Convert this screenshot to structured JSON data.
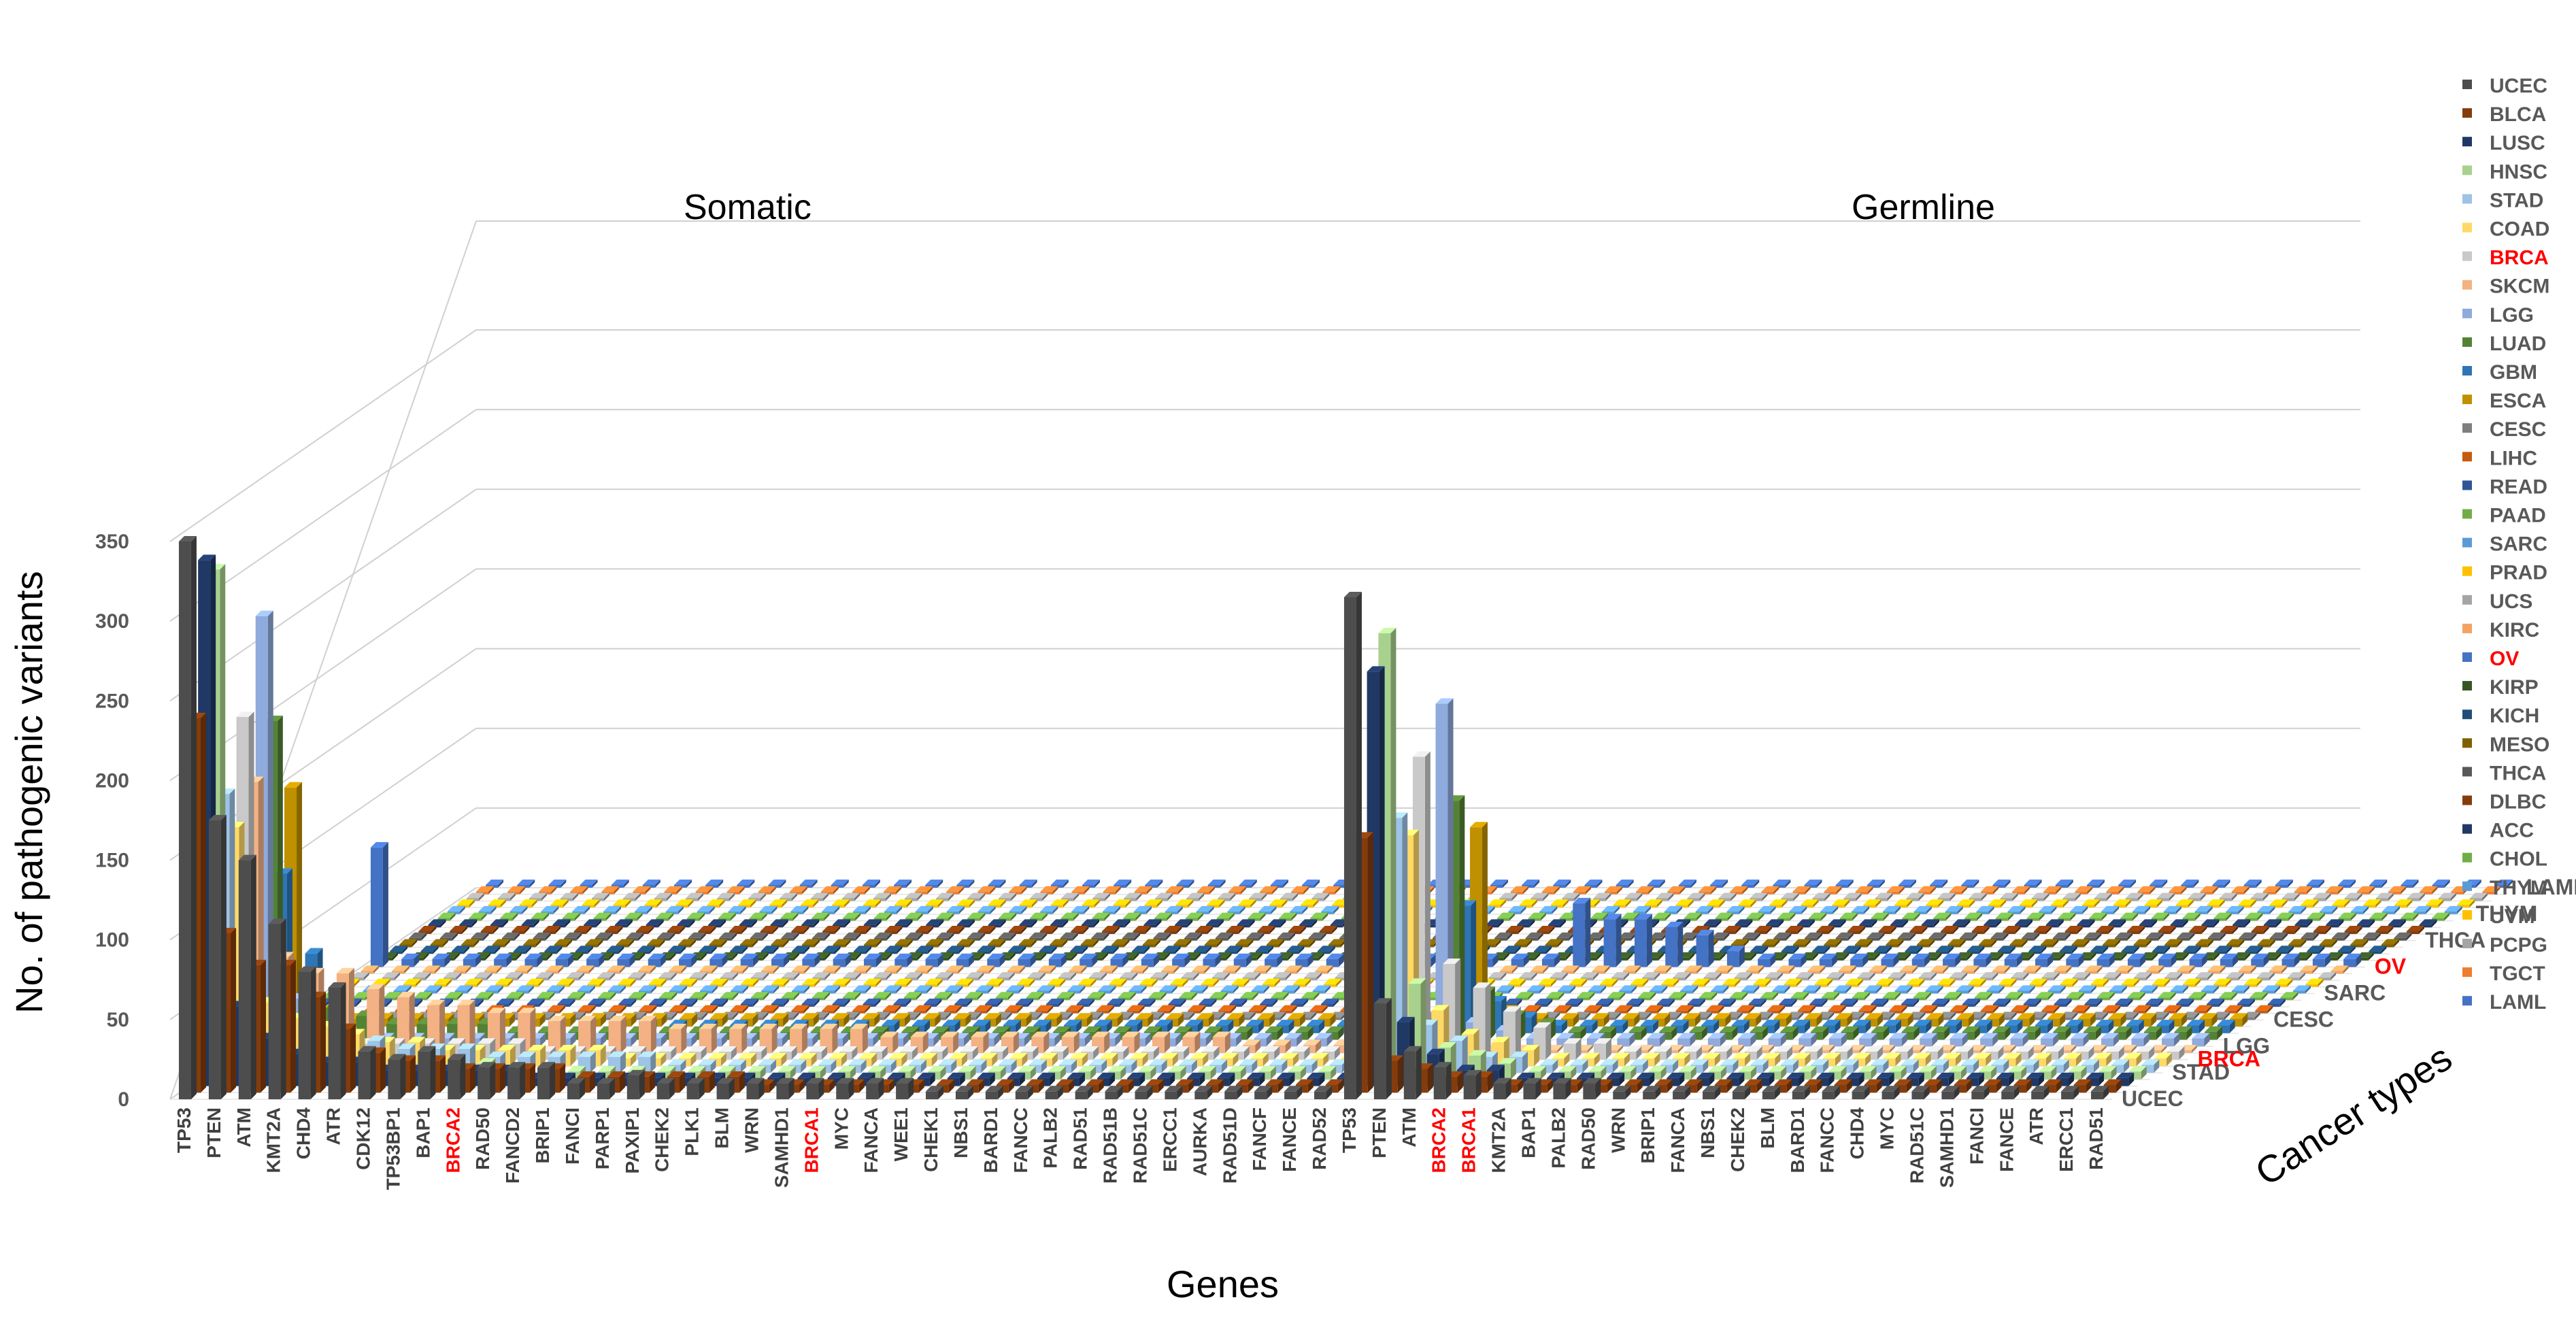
{
  "chart_data": {
    "type": "bar3d",
    "title": "",
    "ylabel": "No. of pathogenic variants",
    "xlabel": "Genes",
    "zlabel": "Cancer types",
    "ylim": [
      0,
      350
    ],
    "yticks": [
      "0",
      "50",
      "100",
      "150",
      "200",
      "250",
      "300",
      "350"
    ],
    "highlight_color": "#ff0000",
    "panels": [
      "Somatic",
      "Germline"
    ],
    "genes_somatic": [
      "TP53",
      "PTEN",
      "ATM",
      "KMT2A",
      "CHD4",
      "ATR",
      "CDK12",
      "TP53BP1",
      "BAP1",
      "BRCA2",
      "RAD50",
      "FANCD2",
      "BRIP1",
      "FANCI",
      "PARP1",
      "PAXIP1",
      "CHEK2",
      "PLK1",
      "BLM",
      "WRN",
      "SAMHD1",
      "BRCA1",
      "MYC",
      "FANCA",
      "WEE1",
      "CHEK1",
      "NBS1",
      "BARD1",
      "FANCC",
      "PALB2",
      "RAD51",
      "RAD51B",
      "RAD51C",
      "ERCC1",
      "AURKA",
      "RAD51D",
      "FANCF",
      "FANCE",
      "RAD52"
    ],
    "genes_germline": [
      "TP53",
      "PTEN",
      "ATM",
      "BRCA2",
      "BRCA1",
      "KMT2A",
      "BAP1",
      "PALB2",
      "RAD50",
      "WRN",
      "BRIP1",
      "FANCA",
      "NBS1",
      "CHEK2",
      "BLM",
      "BARD1",
      "FANCC",
      "CHD4",
      "MYC",
      "RAD51C",
      "SAMHD1",
      "FANCI",
      "FANCE",
      "ATR",
      "ERCC1",
      "RAD51"
    ],
    "highlighted_genes": [
      "BRCA2",
      "BRCA1"
    ],
    "cancer_types": [
      "UCEC",
      "BLCA",
      "LUSC",
      "HNSC",
      "STAD",
      "COAD",
      "BRCA",
      "SKCM",
      "LGG",
      "LUAD",
      "GBM",
      "ESCA",
      "CESC",
      "LIHC",
      "READ",
      "PAAD",
      "SARC",
      "PRAD",
      "UCS",
      "KIRC",
      "OV",
      "KIRP",
      "KICH",
      "MESO",
      "THCA",
      "DLBC",
      "ACC",
      "CHOL",
      "THYM",
      "UVM",
      "PCPG",
      "TGCT",
      "LAML"
    ],
    "cancer_colors": [
      "#4d4d4d",
      "#843c0c",
      "#1f3864",
      "#a9d18e",
      "#9dc3e6",
      "#ffd966",
      "#c9c9c9",
      "#f4b183",
      "#8faadc",
      "#548235",
      "#2e75b6",
      "#bf9000",
      "#7f7f7f",
      "#c55a11",
      "#2f5597",
      "#70ad47",
      "#5b9bd5",
      "#ffc000",
      "#a5a5a5",
      "#f4a261",
      "#4472c4",
      "#375623",
      "#1f4e79",
      "#7f6000",
      "#595959",
      "#843c0c",
      "#203864",
      "#70ad47",
      "#5b9bd5",
      "#ffc000",
      "#a5a5a5",
      "#ed7d31",
      "#4472c4"
    ],
    "highlighted_cancers": [
      "BRCA",
      "OV"
    ],
    "depth_axis_labels": [
      "UCEC",
      "STAD",
      "BRCA",
      "LGG",
      "CESC",
      "SARC",
      "OV",
      "THCA",
      "THYM",
      "LAML"
    ],
    "somatic_values": {
      "UCEC": [
        350,
        175,
        150,
        110,
        80,
        70,
        30,
        25,
        30,
        25,
        20,
        20,
        20,
        10,
        10,
        15,
        10,
        10,
        10,
        10,
        10,
        10,
        10,
        10,
        10,
        5,
        5,
        5,
        5,
        5,
        5,
        5,
        5,
        5,
        5,
        5,
        5,
        5,
        5
      ],
      "BLCA": [
        235,
        100,
        80,
        80,
        60,
        40,
        25,
        20,
        20,
        15,
        15,
        15,
        15,
        10,
        10,
        10,
        10,
        10,
        10,
        5,
        5,
        5,
        5,
        5,
        5,
        5,
        5,
        5,
        5,
        5,
        5,
        5,
        5,
        5,
        5,
        5,
        5,
        5,
        5
      ],
      "LUSC": [
        330,
        50,
        30,
        20,
        15,
        15,
        10,
        10,
        10,
        10,
        10,
        5,
        5,
        5,
        5,
        5,
        5,
        5,
        5,
        5,
        5,
        5,
        5,
        5,
        5,
        5,
        5,
        5,
        5,
        5,
        5,
        5,
        5,
        5,
        5,
        5,
        5,
        5,
        5
      ],
      "HNSC": [
        320,
        40,
        25,
        20,
        15,
        10,
        10,
        10,
        10,
        10,
        5,
        5,
        5,
        5,
        5,
        5,
        5,
        5,
        5,
        5,
        5,
        5,
        5,
        5,
        5,
        5,
        5,
        5,
        5,
        5,
        5,
        5,
        5,
        5,
        5,
        5,
        5,
        5,
        5
      ],
      "STAD": [
        175,
        45,
        35,
        30,
        20,
        20,
        15,
        15,
        15,
        10,
        10,
        10,
        10,
        10,
        10,
        5,
        5,
        5,
        5,
        5,
        5,
        5,
        5,
        5,
        5,
        5,
        5,
        5,
        5,
        5,
        5,
        5,
        5,
        5,
        5,
        5,
        5,
        5,
        5
      ],
      "COAD": [
        150,
        40,
        30,
        25,
        20,
        15,
        15,
        10,
        10,
        10,
        10,
        10,
        10,
        5,
        5,
        5,
        5,
        5,
        5,
        5,
        5,
        5,
        5,
        5,
        5,
        5,
        5,
        5,
        5,
        5,
        5,
        5,
        5,
        5,
        5,
        5,
        5,
        5,
        5
      ],
      "BRCA": [
        215,
        30,
        15,
        15,
        10,
        10,
        10,
        10,
        10,
        10,
        5,
        5,
        5,
        5,
        5,
        5,
        5,
        5,
        5,
        5,
        5,
        5,
        5,
        5,
        5,
        5,
        5,
        5,
        5,
        5,
        5,
        5,
        5,
        5,
        5,
        5,
        5,
        5,
        5
      ],
      "SKCM": [
        170,
        60,
        50,
        50,
        40,
        35,
        30,
        30,
        25,
        25,
        20,
        20,
        20,
        20,
        15,
        15,
        15,
        15,
        15,
        15,
        15,
        10,
        10,
        10,
        10,
        10,
        10,
        10,
        10,
        10,
        10,
        10,
        10,
        5,
        5,
        5,
        5,
        5,
        5
      ],
      "LGG": [
        270,
        30,
        10,
        5,
        5,
        5,
        5,
        5,
        5,
        5,
        5,
        5,
        5,
        5,
        5,
        5,
        5,
        5,
        5,
        5,
        5,
        5,
        5,
        5,
        5,
        5,
        5,
        5,
        5,
        5,
        5,
        5,
        5,
        5,
        5,
        5,
        5,
        5,
        5
      ],
      "LUAD": [
        200,
        25,
        20,
        15,
        10,
        10,
        10,
        10,
        5,
        5,
        5,
        5,
        5,
        5,
        5,
        5,
        5,
        5,
        5,
        5,
        5,
        5,
        5,
        5,
        5,
        5,
        5,
        5,
        5,
        5,
        5,
        5,
        5,
        5,
        5,
        5,
        5,
        5,
        5
      ],
      "GBM": [
        100,
        50,
        10,
        5,
        5,
        5,
        5,
        5,
        5,
        5,
        5,
        5,
        5,
        5,
        5,
        5,
        5,
        5,
        5,
        5,
        5,
        5,
        5,
        5,
        5,
        5,
        5,
        5,
        5,
        5,
        5,
        5,
        5,
        5,
        5,
        5,
        5,
        5,
        5
      ],
      "ESCA": [
        150,
        10,
        5,
        5,
        5,
        5,
        5,
        5,
        5,
        5,
        5,
        5,
        5,
        5,
        5,
        5,
        5,
        5,
        5,
        5,
        5,
        5,
        5,
        5,
        5,
        5,
        5,
        5,
        5,
        5,
        5,
        5,
        5,
        5,
        5,
        5,
        5,
        5,
        5
      ],
      "OV": [
        75,
        5,
        5,
        5,
        5,
        5,
        5,
        5,
        5,
        5,
        5,
        5,
        5,
        5,
        5,
        5,
        5,
        5,
        5,
        5,
        5,
        5,
        5,
        5,
        5,
        5,
        5,
        5,
        5,
        5,
        5,
        5,
        5,
        5,
        5,
        5,
        5,
        5,
        5
      ]
    },
    "germline_values": {
      "UCEC": [
        315,
        60,
        30,
        20,
        15,
        10,
        10,
        10,
        10,
        5,
        5,
        5,
        5,
        5,
        5,
        5,
        5,
        5,
        5,
        5,
        5,
        5,
        5,
        5,
        5,
        5
      ],
      "BLCA": [
        160,
        20,
        15,
        10,
        10,
        5,
        5,
        5,
        5,
        5,
        5,
        5,
        5,
        5,
        5,
        5,
        5,
        5,
        5,
        5,
        5,
        5,
        5,
        5,
        5,
        5
      ],
      "LUSC": [
        260,
        40,
        20,
        10,
        10,
        5,
        5,
        5,
        5,
        5,
        5,
        5,
        5,
        5,
        5,
        5,
        5,
        5,
        5,
        5,
        5,
        5,
        5,
        5,
        5,
        5
      ],
      "HNSC": [
        280,
        60,
        20,
        15,
        10,
        5,
        5,
        5,
        5,
        5,
        5,
        5,
        5,
        5,
        5,
        5,
        5,
        5,
        5,
        5,
        5,
        5,
        5,
        5,
        5,
        5
      ],
      "STAD": [
        160,
        30,
        20,
        10,
        10,
        5,
        5,
        5,
        5,
        5,
        5,
        5,
        5,
        5,
        5,
        5,
        5,
        5,
        5,
        5,
        5,
        5,
        5,
        5,
        5,
        5
      ],
      "COAD": [
        145,
        35,
        20,
        15,
        10,
        5,
        5,
        5,
        5,
        5,
        5,
        5,
        5,
        5,
        5,
        5,
        5,
        5,
        5,
        5,
        5,
        5,
        5,
        5,
        5,
        5
      ],
      "BRCA": [
        190,
        60,
        45,
        30,
        20,
        10,
        10,
        5,
        5,
        5,
        5,
        5,
        5,
        5,
        5,
        5,
        5,
        5,
        5,
        5,
        5,
        5,
        5,
        5,
        5,
        5
      ],
      "LGG": [
        215,
        15,
        10,
        5,
        5,
        5,
        5,
        5,
        5,
        5,
        5,
        5,
        5,
        5,
        5,
        5,
        5,
        5,
        5,
        5,
        5,
        5,
        5,
        5,
        5,
        5
      ],
      "LUAD": [
        150,
        30,
        15,
        10,
        5,
        5,
        5,
        5,
        5,
        5,
        5,
        5,
        5,
        5,
        5,
        5,
        5,
        5,
        5,
        5,
        5,
        5,
        5,
        5,
        5,
        5
      ],
      "GBM": [
        80,
        20,
        10,
        5,
        5,
        5,
        5,
        5,
        5,
        5,
        5,
        5,
        5,
        5,
        5,
        5,
        5,
        5,
        5,
        5,
        5,
        5,
        5,
        5,
        5,
        5
      ],
      "ESCA": [
        125,
        10,
        5,
        5,
        5,
        5,
        5,
        5,
        5,
        5,
        5,
        5,
        5,
        5,
        5,
        5,
        5,
        5,
        5,
        5,
        5,
        5,
        5,
        5,
        5,
        5
      ],
      "OV": [
        40,
        30,
        30,
        25,
        20,
        10,
        5,
        5,
        5,
        5,
        5,
        5,
        5,
        5,
        5,
        5,
        5,
        5,
        5,
        5,
        5,
        5,
        5,
        5,
        5,
        5
      ]
    }
  }
}
